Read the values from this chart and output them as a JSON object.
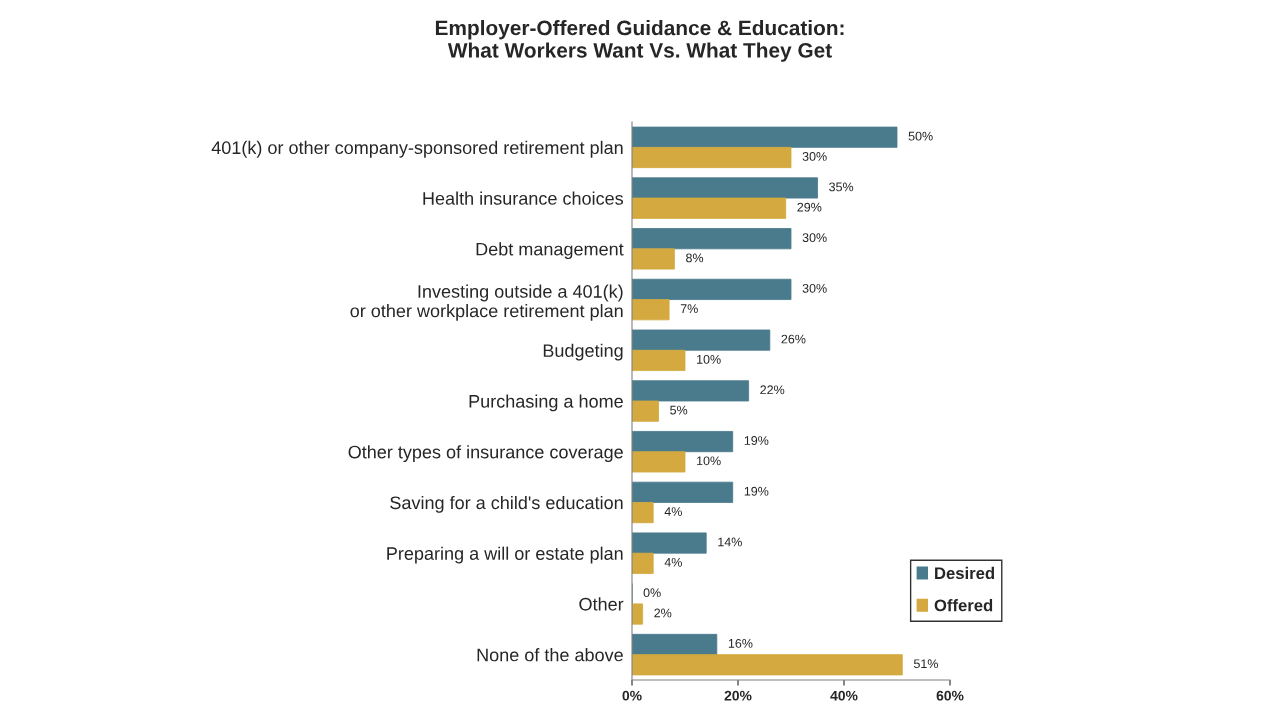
{
  "chart_data": {
    "type": "bar",
    "orientation": "horizontal",
    "title": "Employer-Offered Guidance & Education:\nWhat Workers Want Vs. What They Get",
    "categories": [
      "401(k) or other company-sponsored retirement plan",
      "Health insurance choices",
      "Debt management",
      "Investing outside a 401(k)\nor other workplace retirement plan",
      "Budgeting",
      "Purchasing a home",
      "Other types of insurance coverage",
      "Saving for a child's education",
      "Preparing a will or estate plan",
      "Other",
      "None of the above"
    ],
    "series": [
      {
        "name": "Desired",
        "color": "#4a7b8c",
        "values": [
          50,
          35,
          30,
          30,
          26,
          22,
          19,
          19,
          14,
          0,
          16
        ],
        "value_labels": [
          "50%",
          "35%",
          "30%",
          "30%",
          "26%",
          "22%",
          "19%",
          "19%",
          "14%",
          "0%",
          "16%"
        ]
      },
      {
        "name": "Offered",
        "color": "#d4a93f",
        "values": [
          30,
          29,
          8,
          7,
          10,
          5,
          10,
          4,
          4,
          2,
          51
        ],
        "value_labels": [
          "30%",
          "29%",
          "8%",
          "7%",
          "10%",
          "5%",
          "10%",
          "4%",
          "4%",
          "2%",
          "51%"
        ]
      }
    ],
    "xlim": [
      0,
      60
    ],
    "xticks": [
      {
        "value": 0,
        "label": "0%"
      },
      {
        "value": 20,
        "label": "20%"
      },
      {
        "value": 40,
        "label": "40%"
      },
      {
        "value": 60,
        "label": "60%"
      }
    ],
    "legend": "bottom right",
    "grid": false
  }
}
